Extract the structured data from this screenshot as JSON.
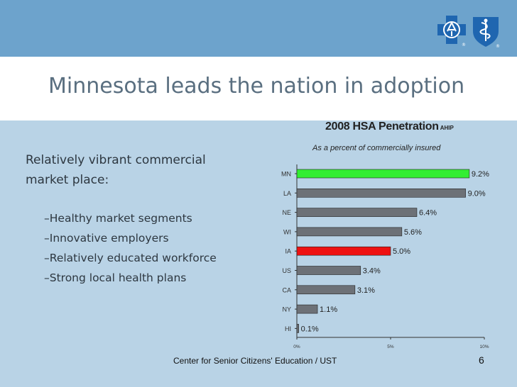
{
  "slide": {
    "title": "Minnesota leads the nation in adoption",
    "lead": "Relatively vibrant commercial market place:",
    "bullets": [
      "–Healthy market segments",
      "–Innovative employers",
      "–Relatively educated workforce",
      "–Strong local health plans"
    ],
    "footer": "Center for Senior Citizens' Education / UST",
    "page_number": "6",
    "colors": {
      "top_band": "#6da3cc",
      "background": "#b9d3e6",
      "title": "#5a6f80",
      "logo_blue": "#1f66b0"
    },
    "logos": {
      "cross_icon": "blue-cross-icon",
      "shield_icon": "blue-shield-icon"
    }
  },
  "chart_data": {
    "type": "bar",
    "orientation": "horizontal",
    "title": "2008 HSA Penetration",
    "source": "AHIP",
    "subtitle": "As a percent of commercially insured",
    "categories": [
      "MN",
      "LA",
      "NE",
      "WI",
      "IA",
      "US",
      "CA",
      "NY",
      "HI"
    ],
    "values": [
      9.2,
      9.0,
      6.4,
      5.6,
      5.0,
      3.4,
      3.1,
      1.1,
      0.1
    ],
    "value_labels": [
      "9.2%",
      "9.0%",
      "6.4%",
      "5.6%",
      "5.0%",
      "3.4%",
      "3.1%",
      "1.1%",
      "0.1%"
    ],
    "bar_colors": [
      "#33ee33",
      "#6d7177",
      "#6d7177",
      "#6d7177",
      "#ee1111",
      "#6d7177",
      "#6d7177",
      "#6d7177",
      "#6d7177"
    ],
    "xlim": [
      0,
      10
    ],
    "xticks": [
      0,
      5,
      10
    ],
    "xtick_labels": [
      "0%",
      "5%",
      "10%"
    ],
    "xlabel": "",
    "ylabel": "",
    "grid": false,
    "legend": false
  }
}
